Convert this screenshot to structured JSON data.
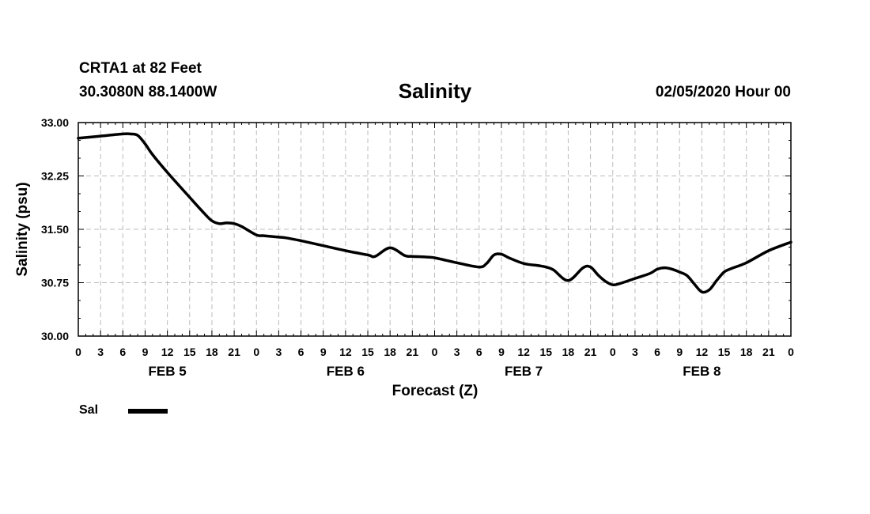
{
  "header": {
    "station": "CRTA1 at 82 Feet",
    "coords": "30.3080N 88.1400W",
    "title": "Salinity",
    "run_time": "02/05/2020 Hour 00"
  },
  "legend": {
    "label": "Sal"
  },
  "colors": {
    "line": "#000000",
    "grid": "#bbbbbb",
    "frame": "#000000"
  },
  "chart_data": {
    "type": "line",
    "title": "Salinity",
    "xlabel": "Forecast (Z)",
    "ylabel": "Salinity (psu)",
    "ylim": [
      30.0,
      33.0
    ],
    "xlim": [
      0,
      96
    ],
    "y_ticks": [
      "30.00",
      "30.75",
      "31.50",
      "32.25",
      "33.00"
    ],
    "x_tick_labels": [
      "0",
      "3",
      "6",
      "9",
      "12",
      "15",
      "18",
      "21",
      "0",
      "3",
      "6",
      "9",
      "12",
      "15",
      "18",
      "21",
      "0",
      "3",
      "6",
      "9",
      "12",
      "15",
      "18",
      "21",
      "0",
      "3",
      "6",
      "9",
      "12",
      "15",
      "18",
      "21",
      "0"
    ],
    "day_labels": [
      {
        "hour": 12,
        "label": "FEB 5"
      },
      {
        "hour": 36,
        "label": "FEB 6"
      },
      {
        "hour": 60,
        "label": "FEB 7"
      },
      {
        "hour": 84,
        "label": "FEB 8"
      }
    ],
    "grid": true,
    "legend_position": "bottom-left",
    "series": [
      {
        "name": "Sal",
        "x": [
          0,
          3,
          6,
          7,
          8,
          9,
          10,
          12,
          15,
          17,
          18,
          19,
          20,
          21,
          22,
          24,
          25,
          27,
          28,
          30,
          33,
          36,
          39,
          40,
          42,
          44,
          45,
          47,
          48,
          51,
          54,
          55,
          56,
          57,
          58,
          60,
          62,
          63,
          64,
          66,
          68,
          69,
          70,
          71,
          72,
          73,
          75,
          77,
          78,
          79,
          80,
          81,
          82,
          83,
          84,
          85,
          86,
          87,
          88,
          90,
          93,
          96
        ],
        "values": [
          32.78,
          32.81,
          32.84,
          32.84,
          32.82,
          32.7,
          32.55,
          32.3,
          31.95,
          31.72,
          31.62,
          31.58,
          31.59,
          31.58,
          31.54,
          31.42,
          31.41,
          31.39,
          31.38,
          31.34,
          31.27,
          31.2,
          31.14,
          31.12,
          31.24,
          31.13,
          31.12,
          31.11,
          31.1,
          31.03,
          30.97,
          31.02,
          31.14,
          31.15,
          31.1,
          31.02,
          30.99,
          30.97,
          30.93,
          30.78,
          30.96,
          30.97,
          30.86,
          30.77,
          30.72,
          30.74,
          30.81,
          30.88,
          30.94,
          30.96,
          30.94,
          30.9,
          30.85,
          30.73,
          30.62,
          30.65,
          30.78,
          30.9,
          30.95,
          31.03,
          31.2,
          31.32
        ]
      }
    ]
  }
}
